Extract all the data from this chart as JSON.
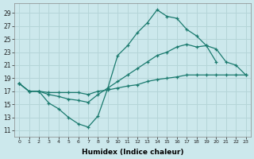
{
  "xlabel": "Humidex (Indice chaleur)",
  "background_color": "#cce8ec",
  "grid_color": "#b5d5d8",
  "line_color": "#1a7a6e",
  "x_ticks": [
    0,
    1,
    2,
    3,
    4,
    5,
    6,
    7,
    8,
    9,
    10,
    11,
    12,
    13,
    14,
    15,
    16,
    17,
    18,
    19,
    20,
    21,
    22,
    23
  ],
  "y_ticks": [
    11,
    13,
    15,
    17,
    19,
    21,
    23,
    25,
    27,
    29
  ],
  "ylim": [
    10.0,
    30.5
  ],
  "xlim": [
    -0.5,
    23.5
  ],
  "line1_x": [
    0,
    1,
    2,
    3,
    4,
    5,
    6,
    7,
    8,
    9,
    10,
    11,
    12,
    13,
    14,
    15,
    16,
    17,
    18,
    19,
    20,
    21
  ],
  "line1_y": [
    18.2,
    17.0,
    17.0,
    15.2,
    14.3,
    13.0,
    12.0,
    11.5,
    13.2,
    17.5,
    22.5,
    24.0,
    26.0,
    27.5,
    29.5,
    28.5,
    28.2,
    26.5,
    25.5,
    24.0,
    21.5,
    null
  ],
  "line2_x": [
    0,
    1,
    2,
    3,
    4,
    5,
    6,
    7,
    8,
    9,
    10,
    11,
    12,
    13,
    14,
    15,
    16,
    17,
    18,
    19,
    20,
    21,
    22,
    23
  ],
  "line2_y": [
    18.2,
    17.0,
    17.0,
    16.5,
    16.2,
    15.8,
    15.6,
    15.3,
    16.5,
    17.5,
    18.5,
    19.5,
    20.5,
    21.5,
    22.5,
    23.0,
    23.8,
    24.2,
    23.8,
    24.0,
    23.5,
    21.5,
    21.0,
    19.5
  ],
  "line3_x": [
    0,
    1,
    2,
    3,
    4,
    5,
    6,
    7,
    8,
    9,
    10,
    11,
    12,
    13,
    14,
    15,
    16,
    17,
    18,
    19,
    20,
    21,
    22,
    23
  ],
  "line3_y": [
    18.2,
    17.0,
    17.0,
    16.8,
    16.8,
    16.8,
    16.8,
    16.5,
    17.0,
    17.2,
    17.5,
    17.8,
    18.0,
    18.5,
    18.8,
    19.0,
    19.2,
    19.5,
    19.5,
    19.5,
    19.5,
    19.5,
    19.5,
    19.5
  ]
}
